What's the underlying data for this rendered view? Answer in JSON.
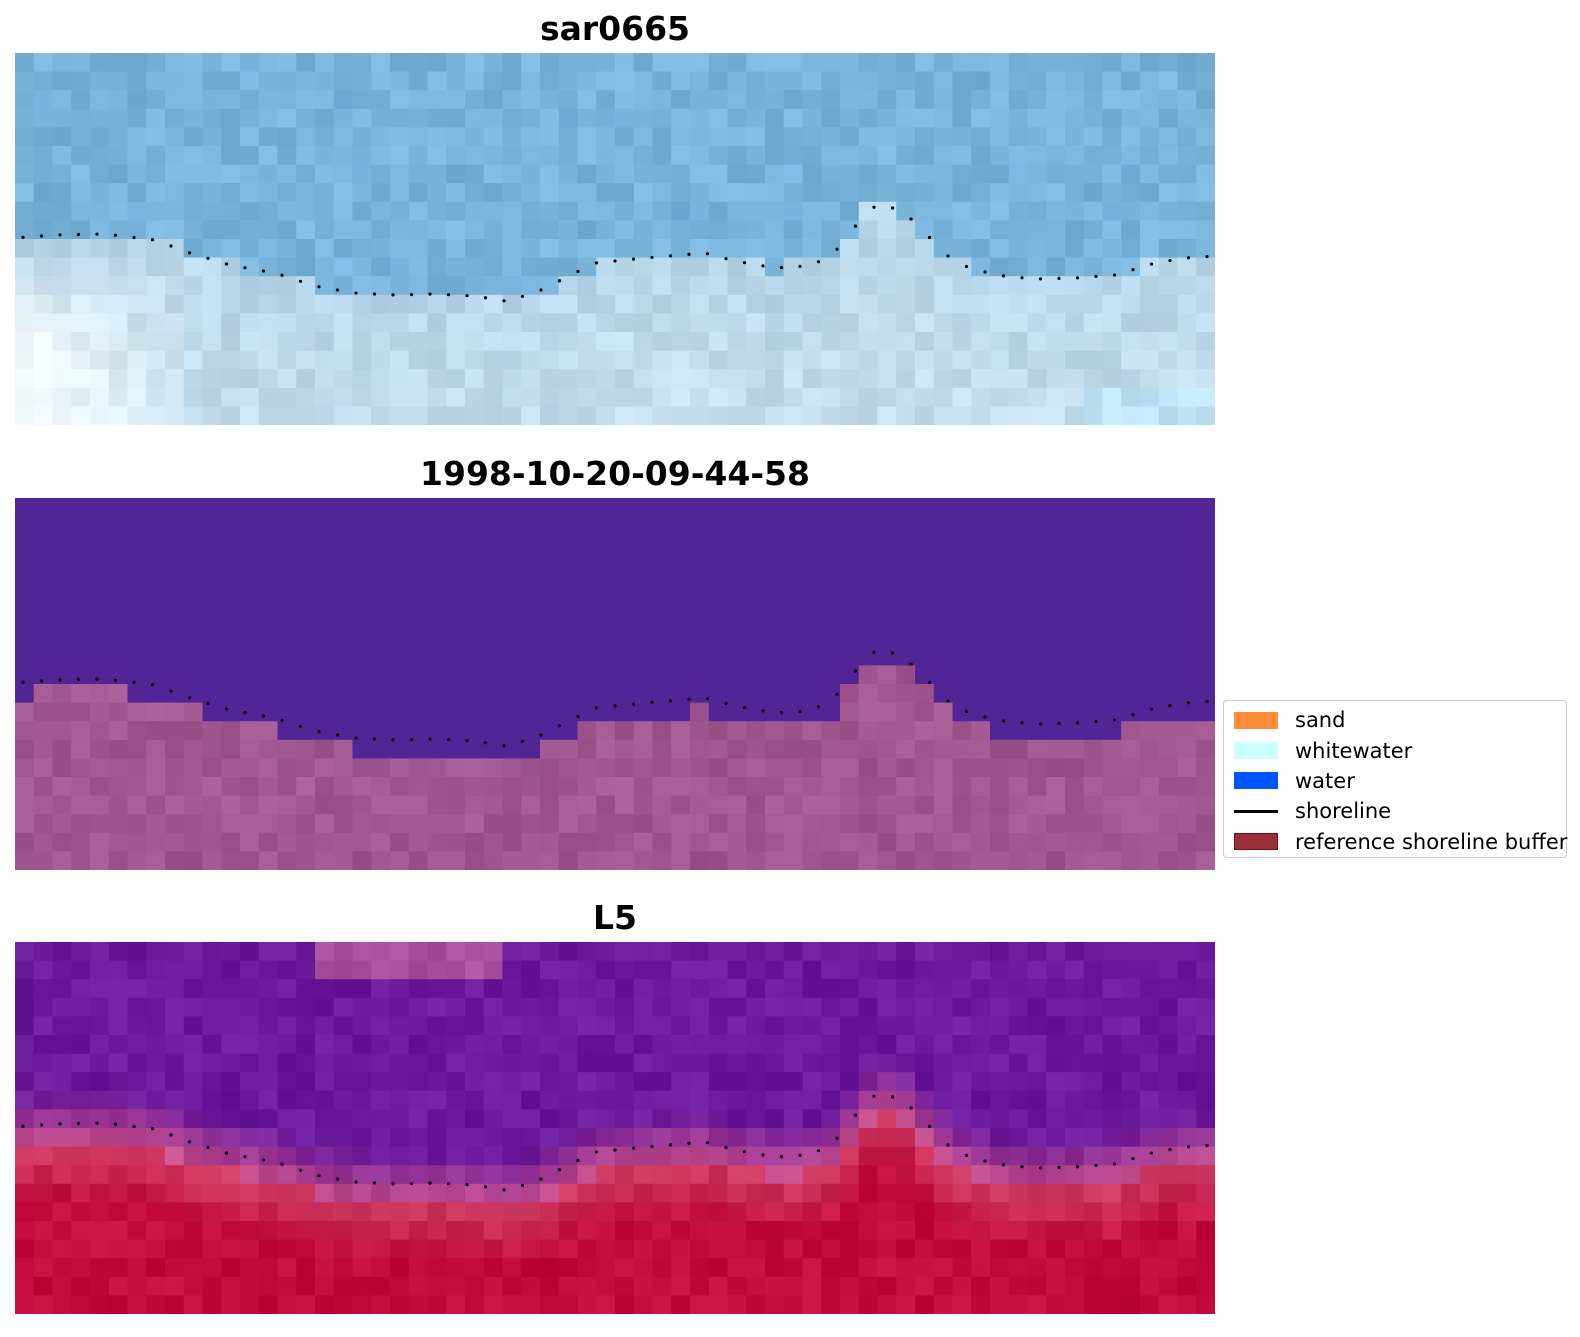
{
  "panels": [
    {
      "title": "sar0665",
      "kind": "rgb"
    },
    {
      "title": "1998-10-20-09-44-58",
      "kind": "classification"
    },
    {
      "title": "L5",
      "kind": "index"
    }
  ],
  "legend": {
    "items": [
      {
        "label": "sand",
        "color": "#ff8c3a",
        "type": "patch"
      },
      {
        "label": "whitewater",
        "color": "#ccffff",
        "type": "patch"
      },
      {
        "label": "water",
        "color": "#0055ff",
        "type": "patch"
      },
      {
        "label": "shoreline",
        "color": "#000000",
        "type": "line"
      },
      {
        "label": "reference shoreline buffer",
        "color": "#9b2f36",
        "edge": "#6a1218",
        "type": "patch"
      }
    ]
  },
  "colors": {
    "rgb_water": "#78b4da",
    "rgb_beach": "#b7d6ea",
    "classification_water": "#532496",
    "classification_buffer": "#a35a92",
    "index_water": "#6b1a9c",
    "index_land": "#c20a3c",
    "shoreline_dots": "#000000"
  }
}
